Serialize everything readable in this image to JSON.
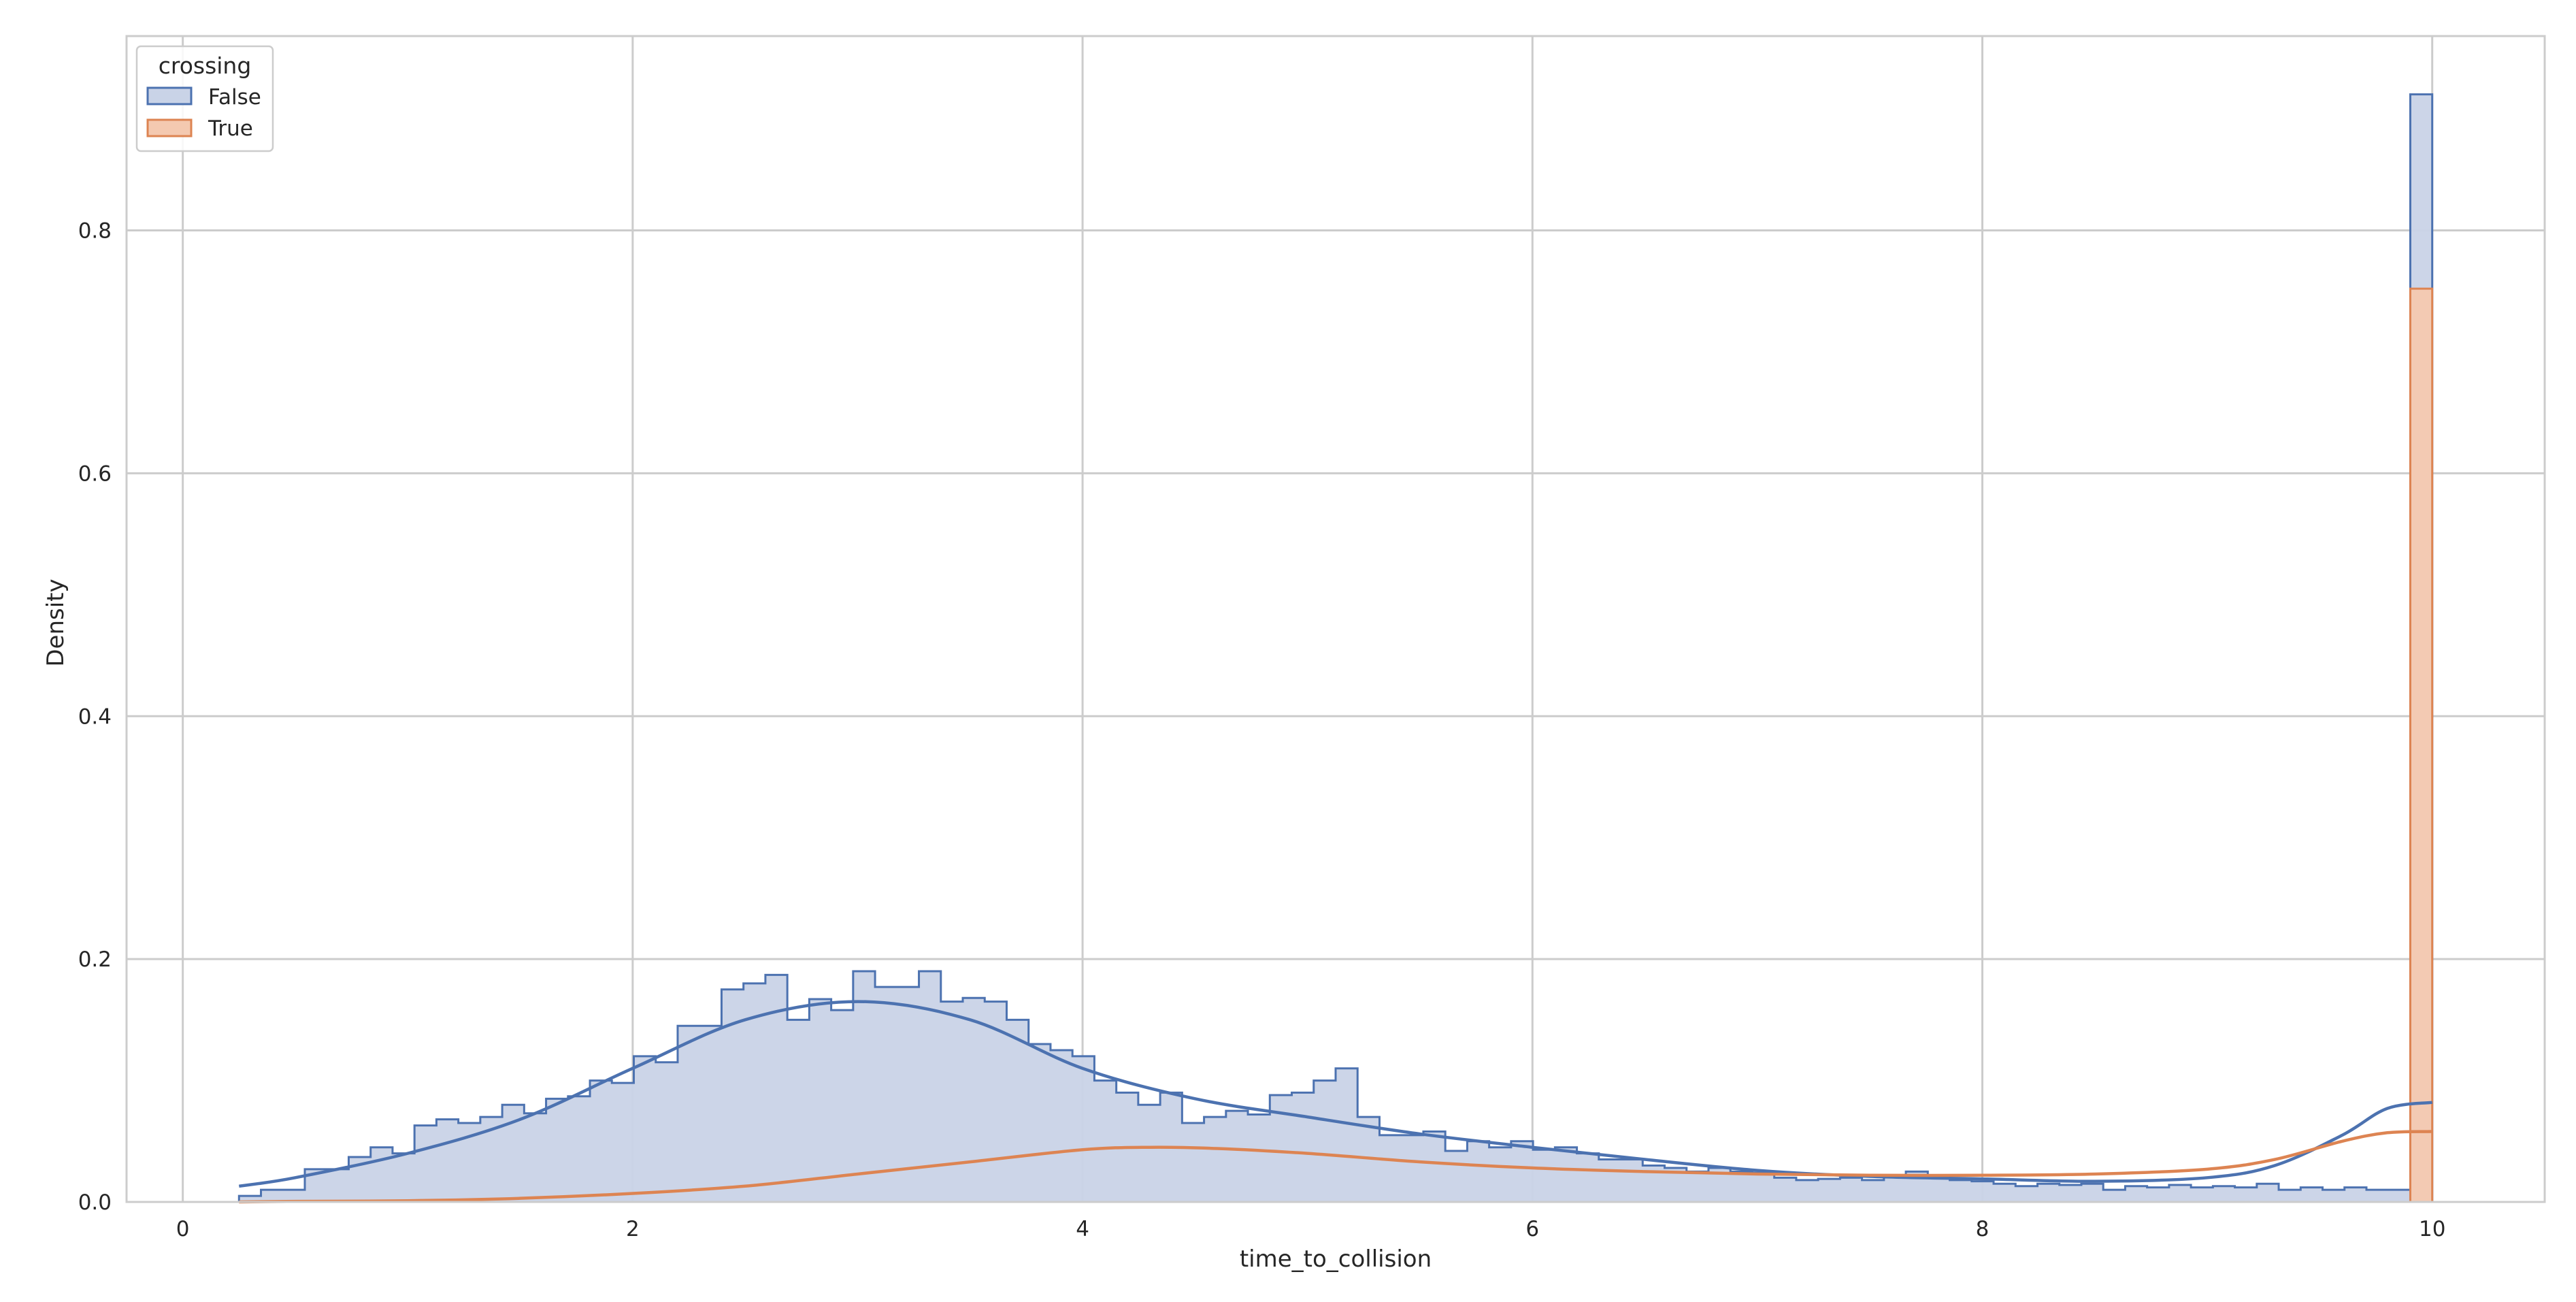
{
  "chart_data": {
    "type": "histogram",
    "xlabel": "time_to_collision",
    "ylabel": "Density",
    "xlim": [
      -0.25,
      10.5
    ],
    "ylim": [
      0,
      0.96
    ],
    "xticks": [
      0,
      2,
      4,
      6,
      8,
      10
    ],
    "yticks": [
      0.0,
      0.2,
      0.4,
      0.6,
      0.8
    ],
    "xtick_labels": [
      "0",
      "2",
      "4",
      "6",
      "8",
      "10"
    ],
    "ytick_labels": [
      "0.0",
      "0.2",
      "0.4",
      "0.6",
      "0.8"
    ],
    "grid": true,
    "legend": {
      "title": "crossing",
      "placement": "top-left"
    },
    "bins": {
      "start": 0.25,
      "width": 0.0975,
      "count": 100
    },
    "series": [
      {
        "name": "False",
        "color": "#4c72b0",
        "fill": "#c9d3e7",
        "values": [
          0.005,
          0.01,
          0.01,
          0.027,
          0.027,
          0.037,
          0.045,
          0.04,
          0.063,
          0.068,
          0.065,
          0.07,
          0.08,
          0.073,
          0.085,
          0.087,
          0.1,
          0.098,
          0.12,
          0.115,
          0.145,
          0.145,
          0.175,
          0.18,
          0.187,
          0.15,
          0.167,
          0.158,
          0.19,
          0.177,
          0.177,
          0.19,
          0.165,
          0.168,
          0.165,
          0.15,
          0.13,
          0.125,
          0.12,
          0.1,
          0.09,
          0.08,
          0.09,
          0.065,
          0.07,
          0.075,
          0.072,
          0.088,
          0.09,
          0.1,
          0.11,
          0.07,
          0.055,
          0.055,
          0.058,
          0.042,
          0.05,
          0.045,
          0.05,
          0.043,
          0.045,
          0.04,
          0.035,
          0.035,
          0.03,
          0.028,
          0.025,
          0.028,
          0.025,
          0.024,
          0.02,
          0.018,
          0.019,
          0.02,
          0.018,
          0.022,
          0.025,
          0.02,
          0.018,
          0.017,
          0.015,
          0.013,
          0.015,
          0.014,
          0.015,
          0.01,
          0.013,
          0.012,
          0.014,
          0.012,
          0.013,
          0.012,
          0.015,
          0.01,
          0.012,
          0.01,
          0.012,
          0.01,
          0.01,
          0.912
        ],
        "kde_x": [
          0.25,
          0.5,
          1.0,
          1.5,
          2.0,
          2.5,
          3.0,
          3.5,
          4.0,
          4.5,
          5.0,
          5.5,
          6.0,
          6.5,
          7.0,
          7.5,
          8.0,
          8.5,
          9.0,
          9.3,
          9.6,
          9.8,
          10.0
        ],
        "kde_y": [
          0.013,
          0.02,
          0.04,
          0.068,
          0.11,
          0.15,
          0.165,
          0.15,
          0.11,
          0.085,
          0.07,
          0.056,
          0.045,
          0.035,
          0.026,
          0.021,
          0.019,
          0.017,
          0.02,
          0.03,
          0.055,
          0.077,
          0.082
        ]
      },
      {
        "name": "True",
        "color": "#dd8452",
        "fill": "#f4c9b0",
        "values": [
          0.0,
          0.0,
          0.0,
          0.0,
          0.0,
          0.0,
          0.0,
          0.0,
          0.0,
          0.0,
          0.0,
          0.0,
          0.0,
          0.0,
          0.0,
          0.0,
          0.0,
          0.0,
          0.0,
          0.0,
          0.0,
          0.0,
          0.0,
          0.0,
          0.0,
          0.0,
          0.0,
          0.0,
          0.0,
          0.0,
          0.0,
          0.0,
          0.0,
          0.0,
          0.0,
          0.0,
          0.0,
          0.0,
          0.0,
          0.0,
          0.0,
          0.0,
          0.0,
          0.0,
          0.0,
          0.0,
          0.0,
          0.0,
          0.0,
          0.0,
          0.0,
          0.0,
          0.0,
          0.0,
          0.0,
          0.0,
          0.0,
          0.0,
          0.0,
          0.0,
          0.0,
          0.0,
          0.0,
          0.0,
          0.0,
          0.0,
          0.0,
          0.0,
          0.0,
          0.0,
          0.0,
          0.0,
          0.0,
          0.0,
          0.0,
          0.0,
          0.0,
          0.0,
          0.0,
          0.0,
          0.0,
          0.0,
          0.0,
          0.0,
          0.0,
          0.0,
          0.0,
          0.0,
          0.0,
          0.0,
          0.0,
          0.0,
          0.0,
          0.0,
          0.0,
          0.0,
          0.0,
          0.0,
          0.0,
          0.752
        ],
        "kde_x": [
          0.25,
          0.5,
          1.0,
          1.5,
          2.0,
          2.5,
          3.0,
          3.5,
          4.0,
          4.3,
          4.6,
          5.0,
          5.5,
          6.0,
          6.5,
          7.0,
          7.5,
          8.0,
          8.5,
          9.0,
          9.3,
          9.6,
          9.8,
          10.0
        ],
        "kde_y": [
          0.0,
          0.0005,
          0.001,
          0.003,
          0.007,
          0.013,
          0.023,
          0.033,
          0.043,
          0.045,
          0.044,
          0.04,
          0.033,
          0.028,
          0.025,
          0.023,
          0.022,
          0.022,
          0.023,
          0.027,
          0.035,
          0.05,
          0.057,
          0.058
        ]
      }
    ]
  }
}
